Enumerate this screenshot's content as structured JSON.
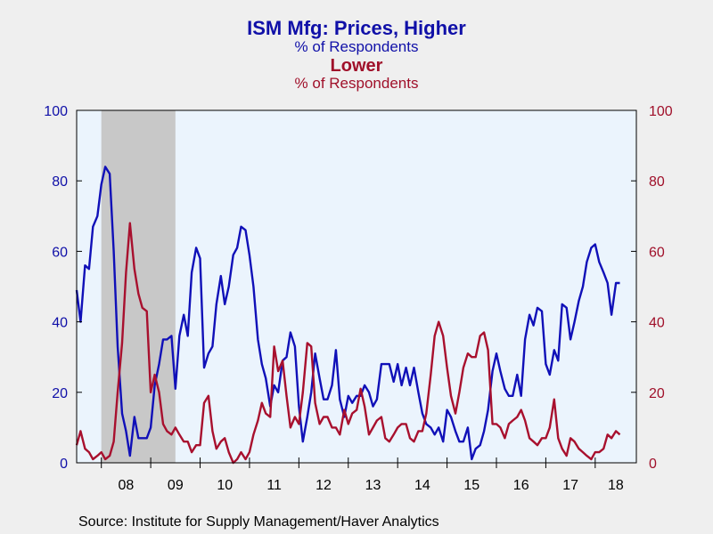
{
  "titles": {
    "main": "ISM Mfg: Prices, Higher",
    "main_sub": "% of Respondents",
    "second": "Lower",
    "second_sub": "% of Respondents"
  },
  "source": "Source:  Institute for Supply Management/Haver Analytics",
  "colors": {
    "higher": "#1010b8",
    "lower": "#a8102e",
    "plot_bg": "#ebf4fd",
    "recession": "#c8c8c8",
    "left_axis": "#1010a8",
    "right_axis": "#a0102a"
  },
  "chart_data": {
    "type": "line",
    "x_start": "2007-07",
    "x_end": "2018-10",
    "x_tick_labels": [
      "08",
      "09",
      "10",
      "11",
      "12",
      "13",
      "14",
      "15",
      "16",
      "17",
      "18"
    ],
    "yleft": {
      "range": [
        0,
        100
      ],
      "ticks": [
        "0",
        "20",
        "40",
        "60",
        "80",
        "100"
      ]
    },
    "yright": {
      "range": [
        0,
        100
      ],
      "ticks": [
        "0",
        "20",
        "40",
        "60",
        "80",
        "100"
      ]
    },
    "recession": {
      "start": "2008-01",
      "end": "2009-06"
    },
    "series": [
      {
        "name": "ISM Mfg: Prices, Higher",
        "axis": "left",
        "values": [
          [
            2007.5,
            49
          ],
          [
            2007.58,
            40
          ],
          [
            2007.67,
            56
          ],
          [
            2007.75,
            55
          ],
          [
            2007.83,
            67
          ],
          [
            2007.92,
            70
          ],
          [
            2008.0,
            79
          ],
          [
            2008.08,
            84
          ],
          [
            2008.17,
            82
          ],
          [
            2008.25,
            60
          ],
          [
            2008.33,
            33
          ],
          [
            2008.42,
            14
          ],
          [
            2008.5,
            9
          ],
          [
            2008.58,
            2
          ],
          [
            2008.67,
            13
          ],
          [
            2008.75,
            7
          ],
          [
            2008.83,
            7
          ],
          [
            2008.92,
            7
          ],
          [
            2009.0,
            10
          ],
          [
            2009.08,
            22
          ],
          [
            2009.17,
            28
          ],
          [
            2009.25,
            35
          ],
          [
            2009.33,
            35
          ],
          [
            2009.42,
            36
          ],
          [
            2009.5,
            21
          ],
          [
            2009.58,
            36
          ],
          [
            2009.67,
            42
          ],
          [
            2009.75,
            36
          ],
          [
            2009.83,
            54
          ],
          [
            2009.92,
            61
          ],
          [
            2010.0,
            58
          ],
          [
            2010.08,
            27
          ],
          [
            2010.17,
            31
          ],
          [
            2010.25,
            33
          ],
          [
            2010.33,
            45
          ],
          [
            2010.42,
            53
          ],
          [
            2010.5,
            45
          ],
          [
            2010.58,
            50
          ],
          [
            2010.67,
            59
          ],
          [
            2010.75,
            61
          ],
          [
            2010.83,
            67
          ],
          [
            2010.92,
            66
          ],
          [
            2011.0,
            59
          ],
          [
            2011.08,
            50
          ],
          [
            2011.17,
            35
          ],
          [
            2011.25,
            28
          ],
          [
            2011.33,
            24
          ],
          [
            2011.42,
            16
          ],
          [
            2011.5,
            22
          ],
          [
            2011.58,
            20
          ],
          [
            2011.67,
            29
          ],
          [
            2011.75,
            30
          ],
          [
            2011.83,
            37
          ],
          [
            2011.92,
            33
          ],
          [
            2012.0,
            16
          ],
          [
            2012.08,
            6
          ],
          [
            2012.17,
            13
          ],
          [
            2012.25,
            20
          ],
          [
            2012.33,
            31
          ],
          [
            2012.42,
            24
          ],
          [
            2012.5,
            18
          ],
          [
            2012.58,
            18
          ],
          [
            2012.67,
            22
          ],
          [
            2012.75,
            32
          ],
          [
            2012.83,
            18
          ],
          [
            2012.92,
            13
          ],
          [
            2013.0,
            19
          ],
          [
            2013.08,
            17
          ],
          [
            2013.17,
            19
          ],
          [
            2013.25,
            19
          ],
          [
            2013.33,
            22
          ],
          [
            2013.42,
            20
          ],
          [
            2013.5,
            16
          ],
          [
            2013.58,
            18
          ],
          [
            2013.67,
            28
          ],
          [
            2013.75,
            28
          ],
          [
            2013.83,
            28
          ],
          [
            2013.92,
            23
          ],
          [
            2014.0,
            28
          ],
          [
            2014.08,
            22
          ],
          [
            2014.17,
            27
          ],
          [
            2014.25,
            22
          ],
          [
            2014.33,
            27
          ],
          [
            2014.42,
            20
          ],
          [
            2014.5,
            14
          ],
          [
            2014.58,
            11
          ],
          [
            2014.67,
            10
          ],
          [
            2014.75,
            8
          ],
          [
            2014.83,
            10
          ],
          [
            2014.92,
            6
          ],
          [
            2015.0,
            15
          ],
          [
            2015.08,
            13
          ],
          [
            2015.17,
            9
          ],
          [
            2015.25,
            6
          ],
          [
            2015.33,
            6
          ],
          [
            2015.42,
            10
          ],
          [
            2015.5,
            1
          ],
          [
            2015.58,
            4
          ],
          [
            2015.67,
            5
          ],
          [
            2015.75,
            9
          ],
          [
            2015.83,
            15
          ],
          [
            2015.92,
            26
          ],
          [
            2016.0,
            31
          ],
          [
            2016.08,
            26
          ],
          [
            2016.17,
            21
          ],
          [
            2016.25,
            19
          ],
          [
            2016.33,
            19
          ],
          [
            2016.42,
            25
          ],
          [
            2016.5,
            19
          ],
          [
            2016.58,
            35
          ],
          [
            2016.67,
            42
          ],
          [
            2016.75,
            39
          ],
          [
            2016.83,
            44
          ],
          [
            2016.92,
            43
          ],
          [
            2017.0,
            28
          ],
          [
            2017.08,
            25
          ],
          [
            2017.17,
            32
          ],
          [
            2017.25,
            29
          ],
          [
            2017.33,
            45
          ],
          [
            2017.42,
            44
          ],
          [
            2017.5,
            35
          ],
          [
            2017.58,
            40
          ],
          [
            2017.67,
            46
          ],
          [
            2017.75,
            50
          ],
          [
            2017.83,
            57
          ],
          [
            2017.92,
            61
          ],
          [
            2018.0,
            62
          ],
          [
            2018.08,
            57
          ],
          [
            2018.17,
            54
          ],
          [
            2018.25,
            51
          ],
          [
            2018.33,
            42
          ],
          [
            2018.42,
            51
          ],
          [
            2018.5,
            51
          ]
        ]
      },
      {
        "name": "Lower",
        "axis": "right",
        "values": [
          [
            2007.5,
            5
          ],
          [
            2007.58,
            9
          ],
          [
            2007.67,
            4
          ],
          [
            2007.75,
            3
          ],
          [
            2007.83,
            1
          ],
          [
            2007.92,
            2
          ],
          [
            2008.0,
            3
          ],
          [
            2008.08,
            1
          ],
          [
            2008.17,
            2
          ],
          [
            2008.25,
            6
          ],
          [
            2008.33,
            20
          ],
          [
            2008.42,
            34
          ],
          [
            2008.5,
            54
          ],
          [
            2008.58,
            68
          ],
          [
            2008.67,
            55
          ],
          [
            2008.75,
            48
          ],
          [
            2008.83,
            44
          ],
          [
            2008.92,
            43
          ],
          [
            2009.0,
            20
          ],
          [
            2009.08,
            25
          ],
          [
            2009.17,
            20
          ],
          [
            2009.25,
            11
          ],
          [
            2009.33,
            9
          ],
          [
            2009.42,
            8
          ],
          [
            2009.5,
            10
          ],
          [
            2009.58,
            8
          ],
          [
            2009.67,
            6
          ],
          [
            2009.75,
            6
          ],
          [
            2009.83,
            3
          ],
          [
            2009.92,
            5
          ],
          [
            2010.0,
            5
          ],
          [
            2010.08,
            17
          ],
          [
            2010.17,
            19
          ],
          [
            2010.25,
            9
          ],
          [
            2010.33,
            4
          ],
          [
            2010.42,
            6
          ],
          [
            2010.5,
            7
          ],
          [
            2010.58,
            3
          ],
          [
            2010.67,
            0
          ],
          [
            2010.75,
            1
          ],
          [
            2010.83,
            3
          ],
          [
            2010.92,
            1
          ],
          [
            2011.0,
            3
          ],
          [
            2011.08,
            8
          ],
          [
            2011.17,
            12
          ],
          [
            2011.25,
            17
          ],
          [
            2011.33,
            14
          ],
          [
            2011.42,
            13
          ],
          [
            2011.5,
            33
          ],
          [
            2011.58,
            26
          ],
          [
            2011.67,
            29
          ],
          [
            2011.75,
            19
          ],
          [
            2011.83,
            10
          ],
          [
            2011.92,
            13
          ],
          [
            2012.0,
            11
          ],
          [
            2012.08,
            20
          ],
          [
            2012.17,
            34
          ],
          [
            2012.25,
            33
          ],
          [
            2012.33,
            17
          ],
          [
            2012.42,
            11
          ],
          [
            2012.5,
            13
          ],
          [
            2012.58,
            13
          ],
          [
            2012.67,
            10
          ],
          [
            2012.75,
            10
          ],
          [
            2012.83,
            8
          ],
          [
            2012.92,
            15
          ],
          [
            2013.0,
            11
          ],
          [
            2013.08,
            14
          ],
          [
            2013.17,
            15
          ],
          [
            2013.25,
            21
          ],
          [
            2013.33,
            16
          ],
          [
            2013.42,
            8
          ],
          [
            2013.5,
            10
          ],
          [
            2013.58,
            12
          ],
          [
            2013.67,
            13
          ],
          [
            2013.75,
            7
          ],
          [
            2013.83,
            6
          ],
          [
            2013.92,
            8
          ],
          [
            2014.0,
            10
          ],
          [
            2014.08,
            11
          ],
          [
            2014.17,
            11
          ],
          [
            2014.25,
            7
          ],
          [
            2014.33,
            6
          ],
          [
            2014.42,
            9
          ],
          [
            2014.5,
            9
          ],
          [
            2014.58,
            14
          ],
          [
            2014.67,
            25
          ],
          [
            2014.75,
            36
          ],
          [
            2014.83,
            40
          ],
          [
            2014.92,
            36
          ],
          [
            2015.0,
            27
          ],
          [
            2015.08,
            19
          ],
          [
            2015.17,
            14
          ],
          [
            2015.25,
            20
          ],
          [
            2015.33,
            27
          ],
          [
            2015.42,
            31
          ],
          [
            2015.5,
            30
          ],
          [
            2015.58,
            30
          ],
          [
            2015.67,
            36
          ],
          [
            2015.75,
            37
          ],
          [
            2015.83,
            32
          ],
          [
            2015.92,
            11
          ],
          [
            2016.0,
            11
          ],
          [
            2016.08,
            10
          ],
          [
            2016.17,
            7
          ],
          [
            2016.25,
            11
          ],
          [
            2016.33,
            12
          ],
          [
            2016.42,
            13
          ],
          [
            2016.5,
            15
          ],
          [
            2016.58,
            12
          ],
          [
            2016.67,
            7
          ],
          [
            2016.75,
            6
          ],
          [
            2016.83,
            5
          ],
          [
            2016.92,
            7
          ],
          [
            2017.0,
            7
          ],
          [
            2017.08,
            10
          ],
          [
            2017.17,
            18
          ],
          [
            2017.25,
            7
          ],
          [
            2017.33,
            4
          ],
          [
            2017.42,
            2
          ],
          [
            2017.5,
            7
          ],
          [
            2017.58,
            6
          ],
          [
            2017.67,
            4
          ],
          [
            2017.75,
            3
          ],
          [
            2017.83,
            2
          ],
          [
            2017.92,
            1
          ],
          [
            2018.0,
            3
          ],
          [
            2018.08,
            3
          ],
          [
            2018.17,
            4
          ],
          [
            2018.25,
            8
          ],
          [
            2018.33,
            7
          ],
          [
            2018.42,
            9
          ],
          [
            2018.5,
            8
          ]
        ]
      }
    ]
  }
}
